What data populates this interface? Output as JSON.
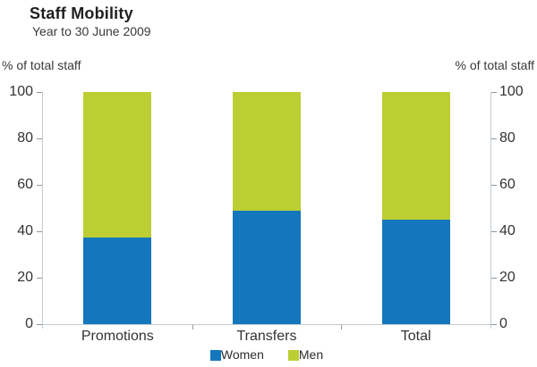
{
  "header": {
    "title": "Staff Mobility",
    "subtitle": "Year to 30 June 2009"
  },
  "axes": {
    "left_caption": "% of total staff",
    "right_caption": "% of total staff"
  },
  "chart_data": {
    "type": "bar",
    "stacked": true,
    "title": "Staff Mobility",
    "subtitle": "Year to 30 June 2009",
    "ylabel_left": "% of total staff",
    "ylabel_right": "% of total staff",
    "categories": [
      "Promotions",
      "Transfers",
      "Total"
    ],
    "series": [
      {
        "name": "Women",
        "color": "#1477bd",
        "values": [
          37.5,
          49,
          45
        ]
      },
      {
        "name": "Men",
        "color": "#bcce33",
        "values": [
          62.5,
          51,
          55
        ]
      }
    ],
    "ylim": [
      0,
      100
    ],
    "yticks": [
      0,
      20,
      40,
      60,
      80,
      100
    ],
    "grid": false,
    "legend_position": "bottom",
    "legend_entries": [
      "Women",
      "Men"
    ]
  },
  "colors": {
    "women": "#1477bd",
    "men": "#bcce33",
    "axis_line": "#c3ccd2",
    "tick_mark": "#90989d",
    "text": "#333333"
  }
}
